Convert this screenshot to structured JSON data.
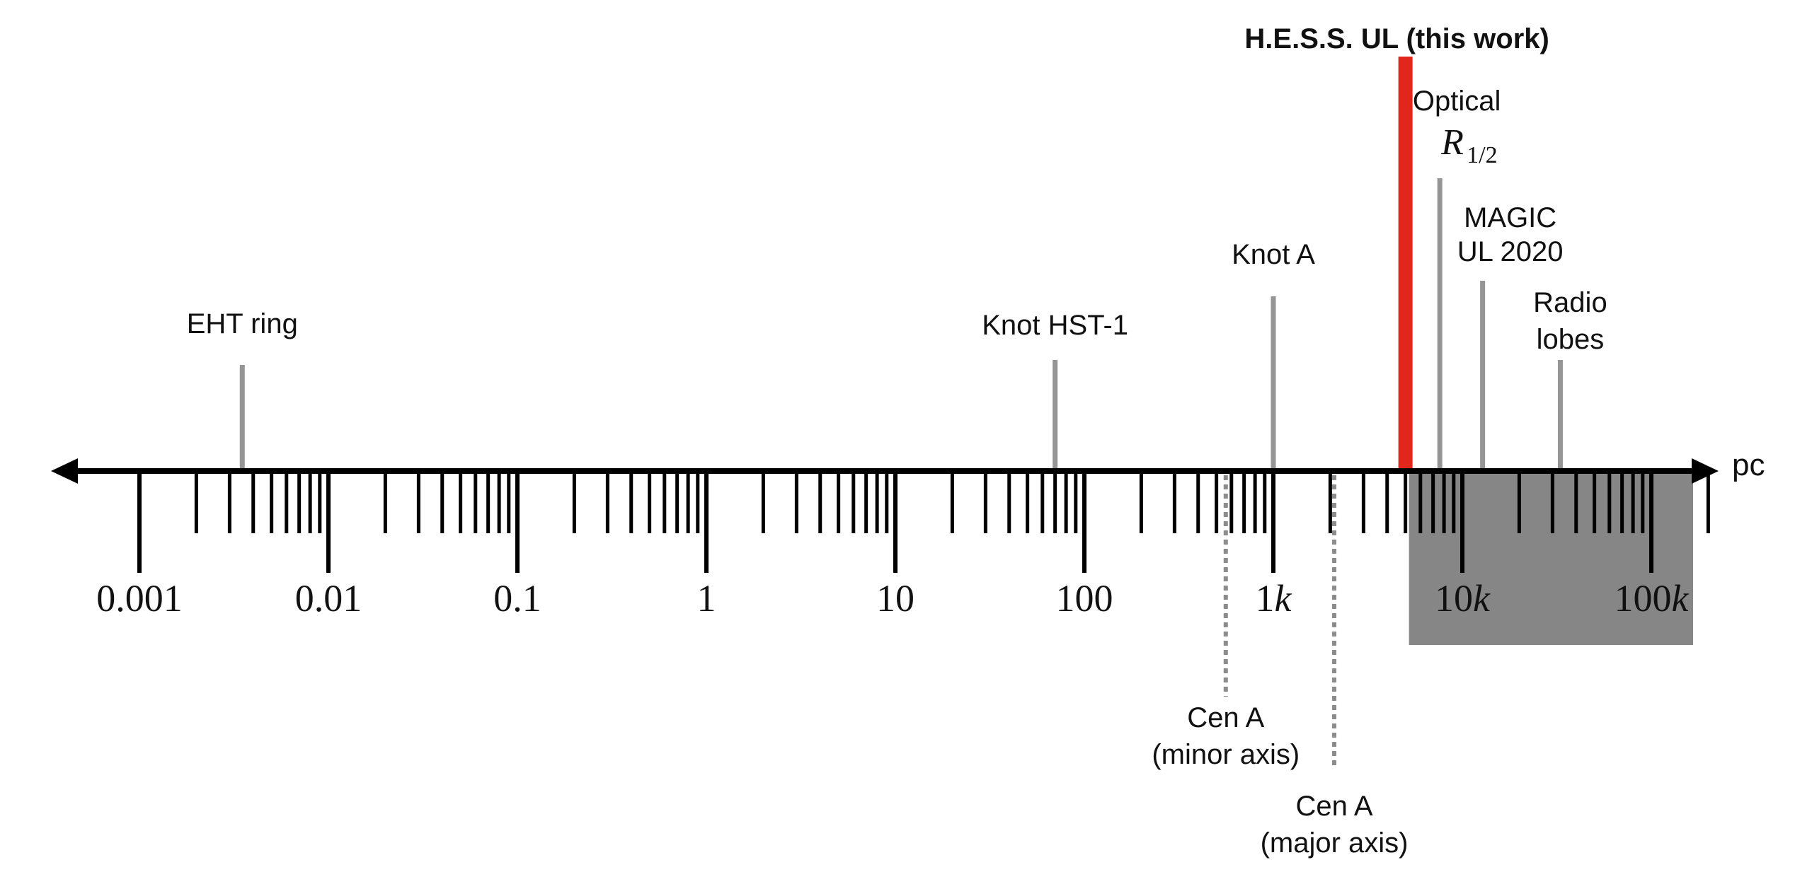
{
  "chart_data": {
    "type": "scale-diagram",
    "scale": "log",
    "unit_label": "pc",
    "range": [
      0.001,
      200000
    ],
    "major_ticks": [
      {
        "value": 0.001,
        "num": "0.001",
        "suffix": ""
      },
      {
        "value": 0.01,
        "num": "0.01",
        "suffix": ""
      },
      {
        "value": 0.1,
        "num": "0.1",
        "suffix": ""
      },
      {
        "value": 1,
        "num": "1",
        "suffix": ""
      },
      {
        "value": 10,
        "num": "10",
        "suffix": ""
      },
      {
        "value": 100,
        "num": "100",
        "suffix": ""
      },
      {
        "value": 1000,
        "num": "1",
        "suffix": "k"
      },
      {
        "value": 10000,
        "num": "10",
        "suffix": "k"
      },
      {
        "value": 100000,
        "num": "100",
        "suffix": "k"
      }
    ],
    "excluded_region": {
      "from": 5000,
      "to": 200000,
      "color": "#868686"
    },
    "highlight": {
      "label": "H.E.S.S. UL (this work)",
      "value": 5000,
      "color": "#e3261b"
    },
    "markers_above": [
      {
        "id": "eht-ring",
        "lines": [
          "EHT ring"
        ],
        "value": 0.0035
      },
      {
        "id": "knot-hst1",
        "lines": [
          "Knot HST-1"
        ],
        "value": 70
      },
      {
        "id": "knot-a",
        "lines": [
          "Knot A"
        ],
        "value": 1000
      },
      {
        "id": "optical",
        "lines": [
          "Optical"
        ],
        "value": 7600
      },
      {
        "id": "magic-ul",
        "lines": [
          "MAGIC",
          "UL 2020"
        ],
        "value": 12800
      },
      {
        "id": "radio-lobes",
        "lines": [
          "Radio",
          "lobes"
        ],
        "value": 33000
      }
    ],
    "optical_symbol": {
      "base": "R",
      "sub": "1/2"
    },
    "markers_below": [
      {
        "id": "cen-a-minor",
        "lines": [
          "Cen A",
          "(minor axis)"
        ],
        "value": 560
      },
      {
        "id": "cen-a-major",
        "lines": [
          "Cen A",
          "(major axis)"
        ],
        "value": 2100
      }
    ],
    "colors": {
      "axis": "#000000",
      "marker": "#959595",
      "dotted": "#8c8c8c",
      "text": "#111111"
    }
  }
}
